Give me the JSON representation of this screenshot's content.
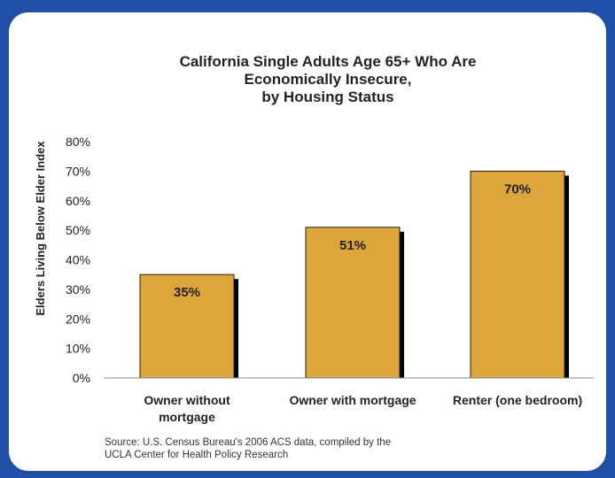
{
  "title": {
    "line1": "California Single Adults Age 65+ Who Are",
    "line2": "Economically Insecure,",
    "line3": "by Housing Status"
  },
  "source": {
    "line1": "Source:  U.S. Census Bureau's 2006 ACS data, compiled by the",
    "line2": "UCLA Center for Health Policy Research"
  },
  "colors": {
    "bar": "#dca63a",
    "bar_edge": "#2a1c05",
    "shadow": "#000000",
    "frame": "#1f4fa6"
  },
  "chart_data": {
    "type": "bar",
    "title": "California Single Adults Age 65+ Who Are Economically Insecure, by Housing Status",
    "ylabel": "Elders Living Below  Elder Index",
    "xlabel": "",
    "ylim": [
      0,
      80
    ],
    "yticks": [
      "0%",
      "10%",
      "20%",
      "30%",
      "40%",
      "50%",
      "60%",
      "70%",
      "80%"
    ],
    "categories": [
      [
        "Owner without",
        "mortgage"
      ],
      [
        "Owner with mortgage"
      ],
      [
        "Renter (one bedroom)"
      ]
    ],
    "values": [
      35,
      51,
      70
    ],
    "data_labels": [
      "35%",
      "51%",
      "70%"
    ],
    "grid": false,
    "legend": "none"
  }
}
